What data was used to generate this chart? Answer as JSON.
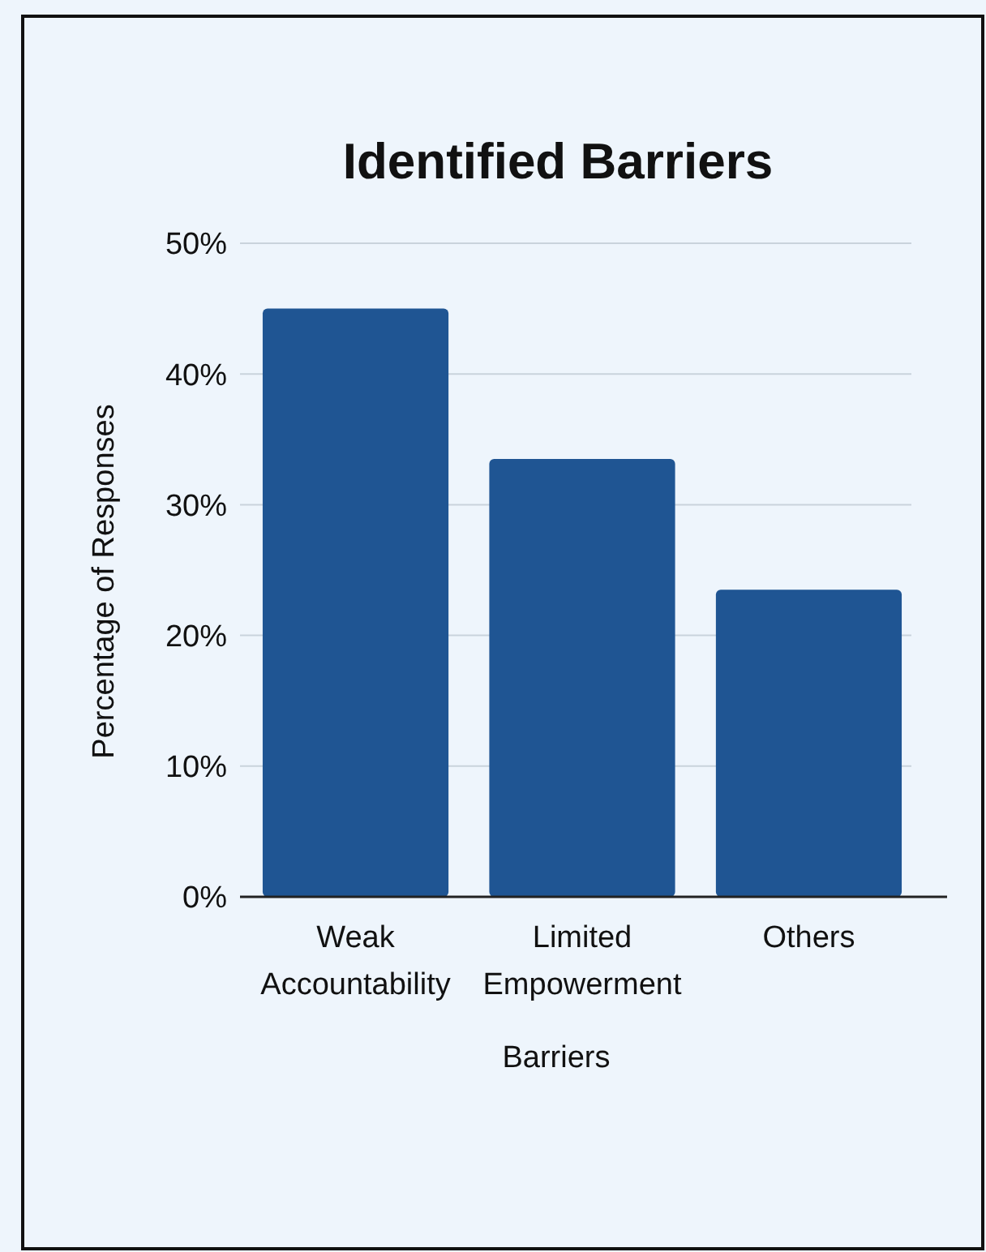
{
  "chart_data": {
    "type": "bar",
    "title": "Identified Barriers",
    "xlabel": "Barriers",
    "ylabel": "Percentage of Responses",
    "categories": [
      "Weak Accountability",
      "Limited Empowerment",
      "Others"
    ],
    "values": [
      45,
      33.5,
      23.5
    ],
    "color": "#1f5593",
    "ylim": [
      0,
      50
    ],
    "yticks": [
      {
        "value": 0,
        "label": "0%"
      },
      {
        "value": 10,
        "label": "10%"
      },
      {
        "value": 20,
        "label": "20%"
      },
      {
        "value": 30,
        "label": "30%"
      },
      {
        "value": 40,
        "label": "40%"
      },
      {
        "value": 50,
        "label": "50%"
      }
    ],
    "grid": "y"
  }
}
